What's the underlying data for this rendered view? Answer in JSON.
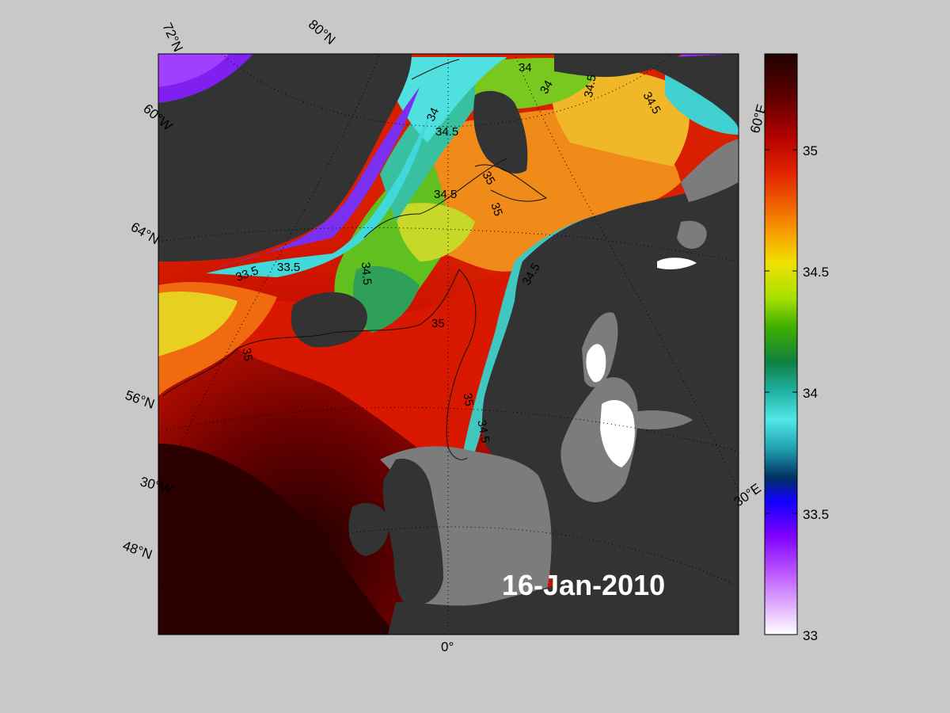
{
  "map": {
    "date": "16-Jan-2010",
    "lat_labels": [
      "72°N",
      "80°N",
      "64°N",
      "56°N",
      "48°N"
    ],
    "lon_labels": [
      "60°W",
      "30°W",
      "0°",
      "30°E",
      "60°E"
    ],
    "contour_labels": [
      "34",
      "34",
      "34",
      "34.5",
      "34.5",
      "34.5",
      "34.5",
      "34.5",
      "34.5",
      "34.5",
      "33.5",
      "33.5",
      "35",
      "35",
      "35",
      "35",
      "35"
    ],
    "colors": {
      "background": "#c8c8c8",
      "land": "#333333",
      "shelf_mask": "#7c7c7c",
      "deep_warm": "#200000",
      "warm_red": "#cf1200"
    }
  },
  "colorbar": {
    "ticks": [
      "35",
      "34.5",
      "34",
      "33.5",
      "33"
    ],
    "stops": [
      "#200000",
      "#5a0000",
      "#b00000",
      "#e02000",
      "#f06000",
      "#f8a000",
      "#f0e000",
      "#a8e000",
      "#40b000",
      "#108040",
      "#20b0a0",
      "#50e8e8",
      "#20a0b0",
      "#003060",
      "#1000ff",
      "#8000ff",
      "#c060ff",
      "#e0b0ff",
      "#ffffff"
    ]
  }
}
